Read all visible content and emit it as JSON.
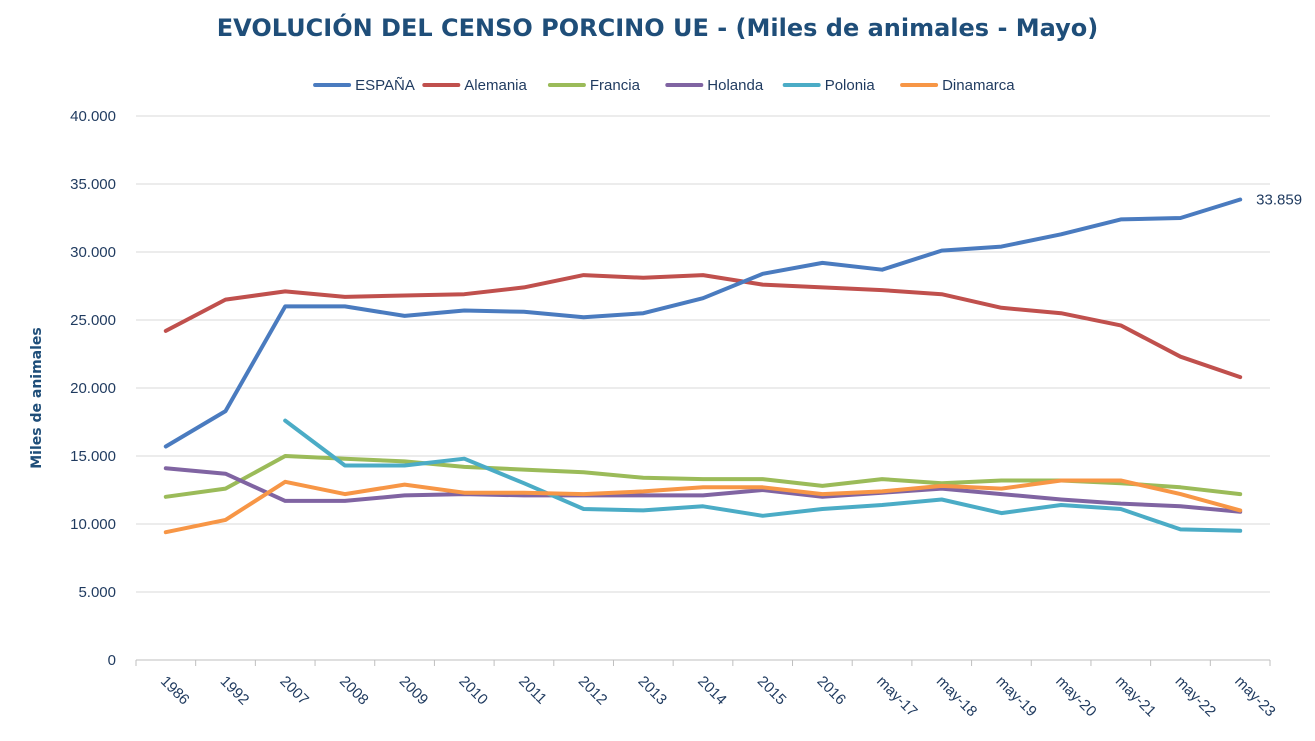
{
  "chart_data": {
    "type": "line",
    "title": "EVOLUCIÓN DEL CENSO PORCINO UE - (Miles de animales - Mayo)",
    "ylabel": "Miles de animales",
    "xlabel": "",
    "ylim": [
      0,
      40000
    ],
    "yticks": [
      0,
      5000,
      10000,
      15000,
      20000,
      25000,
      30000,
      35000,
      40000
    ],
    "ytick_labels": [
      "0",
      "5.000",
      "10.000",
      "15.000",
      "20.000",
      "25.000",
      "30.000",
      "35.000",
      "40.000"
    ],
    "grid": true,
    "legend_position": "top",
    "categories": [
      "1986",
      "1992",
      "2007",
      "2008",
      "2009",
      "2010",
      "2011",
      "2012",
      "2013",
      "2014",
      "2015",
      "2016",
      "may-17",
      "may-18",
      "may-19",
      "may-20",
      "may-21",
      "may-22",
      "may-23"
    ],
    "series": [
      {
        "name": "ESPAÑA",
        "color": "#4a7bbf",
        "values": [
          15700,
          18300,
          26000,
          26000,
          25300,
          25700,
          25600,
          25200,
          25500,
          26600,
          28400,
          29200,
          28700,
          30100,
          30400,
          31300,
          32400,
          32500,
          33859
        ],
        "end_label": "33.859"
      },
      {
        "name": "Alemania",
        "color": "#c0504d",
        "values": [
          24200,
          26500,
          27100,
          26700,
          26800,
          26900,
          27400,
          28300,
          28100,
          28300,
          27600,
          27400,
          27200,
          26900,
          25900,
          25500,
          24600,
          22300,
          20800
        ]
      },
      {
        "name": "Francia",
        "color": "#9bbb59",
        "values": [
          12000,
          12600,
          15000,
          14800,
          14600,
          14200,
          14000,
          13800,
          13400,
          13300,
          13300,
          12800,
          13300,
          13000,
          13200,
          13200,
          13000,
          12700,
          12200
        ]
      },
      {
        "name": "Holanda",
        "color": "#8064a2",
        "values": [
          14100,
          13700,
          11700,
          11700,
          12100,
          12200,
          12100,
          12100,
          12100,
          12100,
          12500,
          12000,
          12300,
          12600,
          12200,
          11800,
          11500,
          11300,
          10900
        ]
      },
      {
        "name": "Polonia",
        "color": "#4bacc6",
        "values": [
          null,
          null,
          17600,
          14300,
          14300,
          14800,
          13000,
          11100,
          11000,
          11300,
          10600,
          11100,
          11400,
          11800,
          10800,
          11400,
          11100,
          9600,
          9500
        ]
      },
      {
        "name": "Dinamarca",
        "color": "#f79646",
        "values": [
          9400,
          10300,
          13100,
          12200,
          12900,
          12300,
          12300,
          12200,
          12400,
          12700,
          12700,
          12200,
          12400,
          12800,
          12600,
          13200,
          13200,
          12200,
          11000
        ]
      }
    ]
  }
}
